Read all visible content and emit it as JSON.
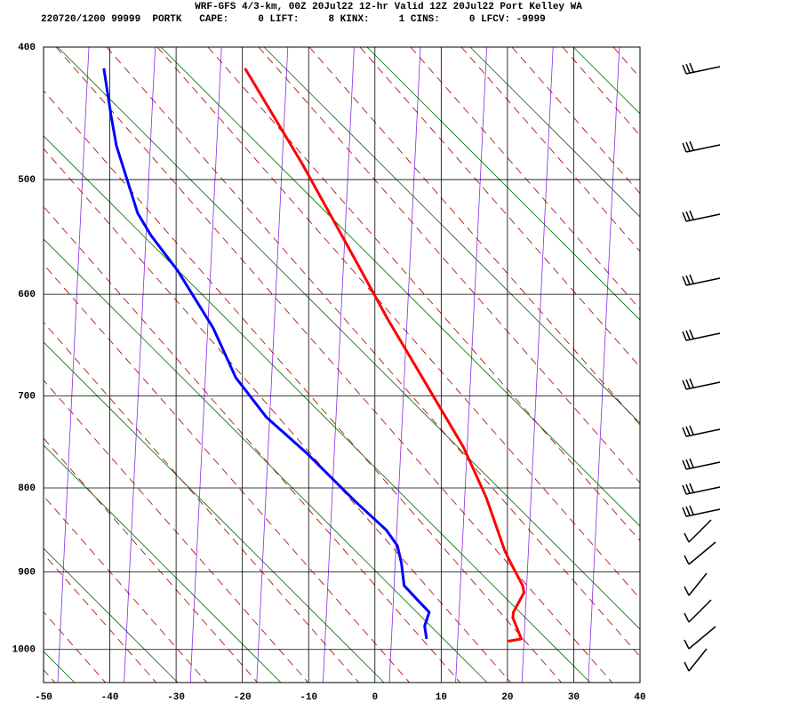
{
  "chart_data": {
    "type": "skewt",
    "title": "WRF-GFS 4/3-km, 00Z 20Jul22 12-hr Valid 12Z 20Jul22 Port Kelley WA",
    "subtitle": "220720/1200 99999  PORTK   CAPE:     0 LIFT:     8 KINX:     1 CINS:     0 LFCV: -9999",
    "xlim": [
      -50,
      40
    ],
    "xticks": [
      -50,
      -40,
      -30,
      -20,
      -10,
      0,
      10,
      20,
      30,
      40
    ],
    "ylim": [
      400,
      1045
    ],
    "yticks": [
      400,
      500,
      600,
      700,
      800,
      900,
      1000
    ],
    "yscale": "kappa",
    "grid": true,
    "series": [
      {
        "color": "#ff0000",
        "x": [
          -19.6,
          -11.0,
          -3.2,
          1.9,
          7.5,
          13.4,
          16.8,
          19.6,
          20.5,
          22.3,
          22.5,
          20.9,
          20.8,
          21.6,
          22.1,
          20.1
        ],
        "values": [
          415,
          487,
          566,
          623,
          685,
          755,
          811,
          874,
          889,
          917,
          926,
          951,
          958,
          975,
          986,
          989
        ]
      },
      {
        "color": "#0000ff",
        "x": [
          -40.9,
          -39.8,
          -39.0,
          -35.8,
          -33.8,
          -29.8,
          -24.4,
          -21.0,
          -16.4,
          -10.3,
          -2.9,
          1.7,
          3.4,
          4.0,
          4.4,
          6.4,
          8.2,
          7.5,
          7.8
        ],
        "values": [
          415,
          450,
          473,
          528,
          547,
          578,
          632,
          681,
          722,
          761,
          816,
          849,
          868,
          889,
          917,
          935,
          951,
          969,
          986
        ]
      }
    ]
  }
}
